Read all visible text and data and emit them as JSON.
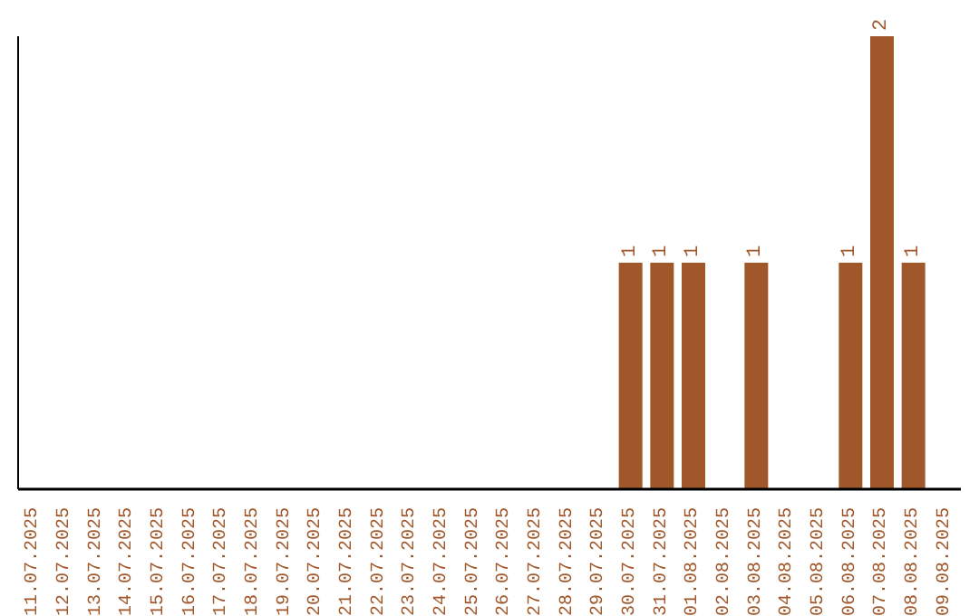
{
  "chart_data": {
    "type": "bar",
    "categories": [
      "11.07.2025",
      "12.07.2025",
      "13.07.2025",
      "14.07.2025",
      "15.07.2025",
      "16.07.2025",
      "17.07.2025",
      "18.07.2025",
      "19.07.2025",
      "20.07.2025",
      "21.07.2025",
      "22.07.2025",
      "23.07.2025",
      "24.07.2025",
      "25.07.2025",
      "26.07.2025",
      "27.07.2025",
      "28.07.2025",
      "29.07.2025",
      "30.07.2025",
      "31.07.2025",
      "01.08.2025",
      "02.08.2025",
      "03.08.2025",
      "04.08.2025",
      "05.08.2025",
      "06.08.2025",
      "07.08.2025",
      "08.08.2025",
      "09.08.2025"
    ],
    "values": [
      null,
      null,
      null,
      null,
      null,
      null,
      null,
      null,
      null,
      null,
      null,
      null,
      null,
      null,
      null,
      null,
      null,
      null,
      null,
      1,
      1,
      1,
      null,
      1,
      null,
      null,
      1,
      2,
      1,
      null
    ],
    "data_labels": true,
    "color": "#a0572a",
    "tick_labels": "x"
  }
}
